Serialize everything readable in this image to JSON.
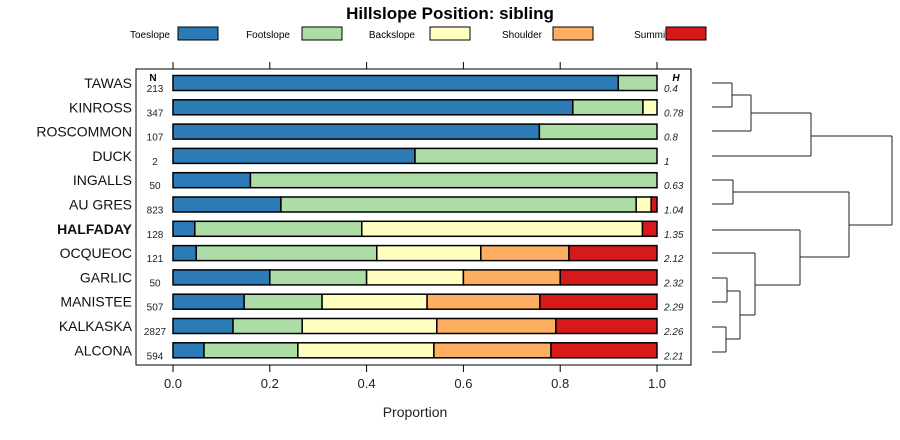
{
  "chart_data": {
    "type": "bar",
    "stacked": true,
    "orientation": "horizontal",
    "title": "Hillslope Position: sibling",
    "xlabel": "Proportion",
    "ylabel": "",
    "xlim": [
      0,
      1
    ],
    "xticks": [
      "0.0",
      "0.2",
      "0.4",
      "0.6",
      "0.8",
      "1.0"
    ],
    "xtick_values": [
      0,
      0.2,
      0.4,
      0.6,
      0.8,
      1.0
    ],
    "n_header": "N",
    "h_header": "H",
    "legend_placement": "top",
    "legend": [
      "Toeslope",
      "Footslope",
      "Backslope",
      "Shoulder",
      "Summit"
    ],
    "colors": [
      "#2C7BB6",
      "#ABDDA4",
      "#FFFFBF",
      "#FDAE61",
      "#D7191C"
    ],
    "categories": [
      "TAWAS",
      "KINROSS",
      "ROSCOMMON",
      "DUCK",
      "INGALLS",
      "AU GRES",
      "HALFADAY",
      "OCQUEOC",
      "GARLIC",
      "MANISTEE",
      "KALKASKA",
      "ALCONA"
    ],
    "highlight": "HALFADAY",
    "n": [
      "213",
      "347",
      "107",
      "2",
      "50",
      "823",
      "128",
      "121",
      "50",
      "507",
      "2827",
      "594"
    ],
    "h": [
      "0.4",
      "0.78",
      "0.8",
      "1",
      "0.63",
      "1.04",
      "1.35",
      "2.12",
      "2.32",
      "2.29",
      "2.26",
      "2.21"
    ],
    "series": [
      {
        "name": "Toeslope",
        "values": [
          0.92,
          0.826,
          0.757,
          0.5,
          0.16,
          0.223,
          0.045,
          0.048,
          0.2,
          0.147,
          0.124,
          0.064
        ]
      },
      {
        "name": "Footslope",
        "values": [
          0.08,
          0.145,
          0.243,
          0.5,
          0.84,
          0.734,
          0.345,
          0.373,
          0.2,
          0.161,
          0.143,
          0.194
        ]
      },
      {
        "name": "Backslope",
        "values": [
          0,
          0.029,
          0,
          0,
          0,
          0.031,
          0.58,
          0.215,
          0.2,
          0.217,
          0.278,
          0.281
        ]
      },
      {
        "name": "Shoulder",
        "values": [
          0,
          0,
          0,
          0,
          0,
          0,
          0,
          0.182,
          0.2,
          0.233,
          0.246,
          0.242
        ]
      },
      {
        "name": "Summit",
        "values": [
          0,
          0,
          0,
          0,
          0,
          0.012,
          0.03,
          0.182,
          0.2,
          0.242,
          0.209,
          0.219
        ]
      }
    ]
  }
}
